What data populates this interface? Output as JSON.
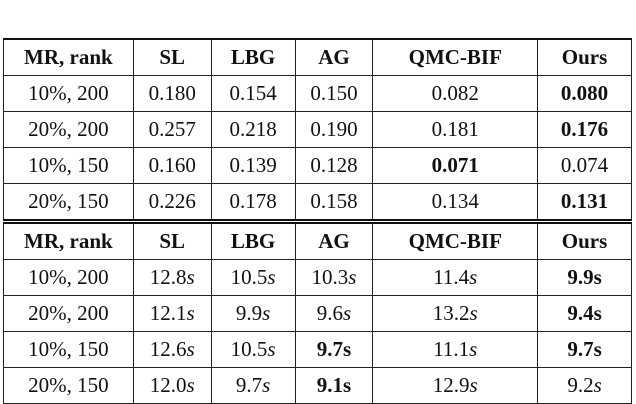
{
  "table": {
    "sections": [
      {
        "header": [
          "MR, rank",
          "SL",
          "LBG",
          "AG",
          "QMC-BIF",
          "Ours"
        ],
        "rows": [
          [
            "10%, 200",
            "0.180",
            "0.154",
            "0.150",
            "0.082",
            "0.080"
          ],
          [
            "20%, 200",
            "0.257",
            "0.218",
            "0.190",
            "0.181",
            "0.176"
          ],
          [
            "10%, 150",
            "0.160",
            "0.139",
            "0.128",
            "0.071",
            "0.074"
          ],
          [
            "20%, 150",
            "0.226",
            "0.178",
            "0.158",
            "0.134",
            "0.131"
          ]
        ],
        "bold": [
          [
            0,
            5
          ],
          [
            1,
            5
          ],
          [
            2,
            4
          ],
          [
            3,
            5
          ]
        ]
      },
      {
        "header": [
          "MR, rank",
          "SL",
          "LBG",
          "AG",
          "QMC-BIF",
          "Ours"
        ],
        "rows": [
          [
            "10%, 200",
            "12.8s",
            "10.5s",
            "10.3s",
            "11.4s",
            "9.9s"
          ],
          [
            "20%, 200",
            "12.1s",
            "9.9s",
            "9.6s",
            "13.2s",
            "9.4s"
          ],
          [
            "10%, 150",
            "12.6s",
            "10.5s",
            "9.7s",
            "11.1s",
            "9.7s"
          ],
          [
            "20%, 150",
            "12.0s",
            "9.7s",
            "9.1s",
            "12.9s",
            "9.2s"
          ]
        ],
        "bold": [
          [
            0,
            5
          ],
          [
            1,
            5
          ],
          [
            2,
            3
          ],
          [
            2,
            5
          ],
          [
            3,
            3
          ]
        ]
      }
    ]
  }
}
